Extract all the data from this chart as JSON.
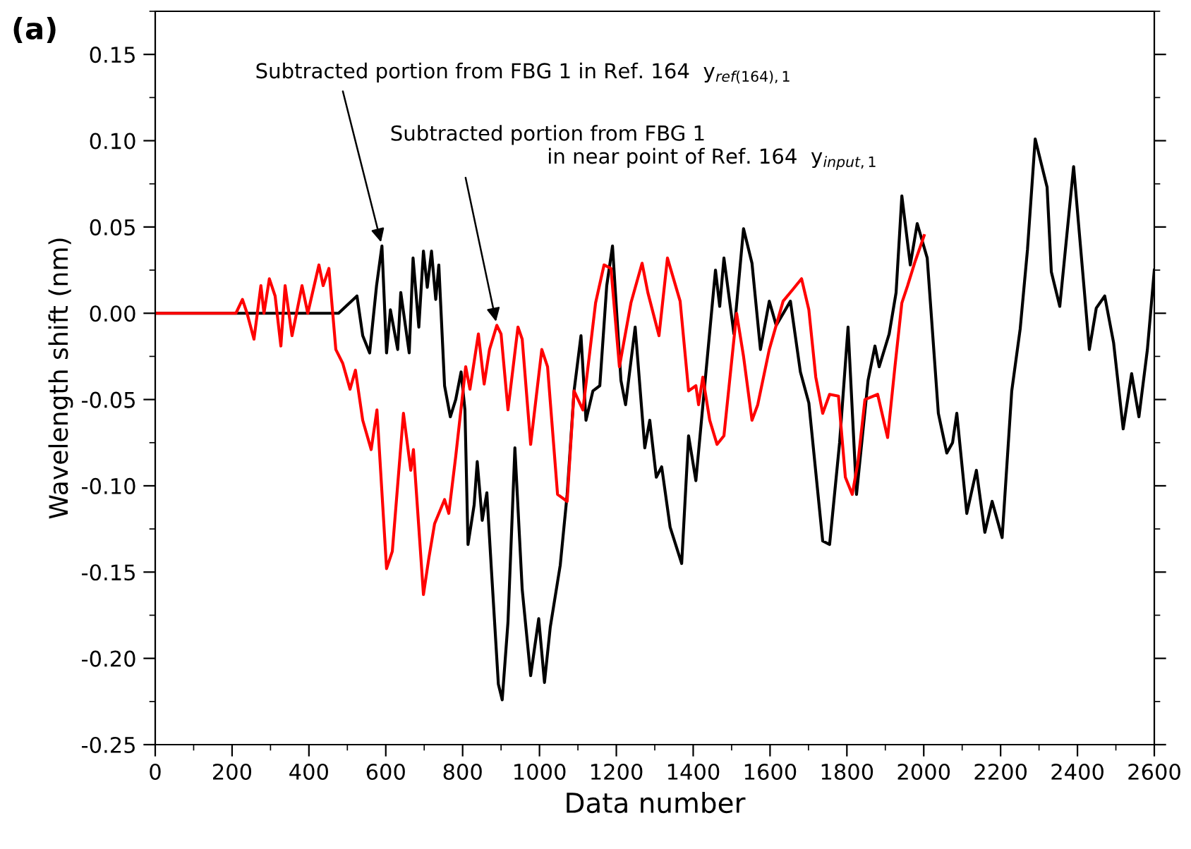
{
  "chart_data": {
    "type": "line",
    "xlabel": "Data number",
    "ylabel": "Wavelength shift (nm)",
    "xlim": [
      0,
      2600
    ],
    "ylim": [
      -0.25,
      0.175
    ],
    "xticks": [
      0,
      200,
      400,
      600,
      800,
      1000,
      1200,
      1400,
      1600,
      1800,
      2000,
      2200,
      2400,
      2600
    ],
    "yticks": [
      {
        "value": -0.25,
        "label": "-0.25"
      },
      {
        "value": -0.2,
        "label": "-0.20"
      },
      {
        "value": -0.15,
        "label": "-0.15"
      },
      {
        "value": -0.1,
        "label": "-0.10"
      },
      {
        "value": -0.05,
        "label": "-0.05"
      },
      {
        "value": 0,
        "label": "0.00"
      },
      {
        "value": 0.05,
        "label": "0.05"
      },
      {
        "value": 0.1,
        "label": "0.10"
      },
      {
        "value": 0.15,
        "label": "0.15"
      }
    ],
    "grid": false,
    "legend": false,
    "marker": "none",
    "line_style": "solid",
    "annotations": [
      "(a)",
      {
        "text": "Subtracted portion from FBG 1 in Ref. 164  y$_{ref(164),1}$",
        "x": 590,
        "y": 0.039
      },
      {
        "text": "Subtracted portion from FBG 1\n                        in near point of Ref. 164  y$_{input,1}$",
        "x": 889,
        "y": -0.007
      }
    ],
    "series": [
      {
        "color": "#000000",
        "x": [
          0,
          477,
          525,
          540,
          558,
          576,
          590,
          602,
          612,
          631,
          639,
          661,
          671,
          686,
          698,
          708,
          719,
          730,
          738,
          753,
          768,
          782,
          796,
          806,
          814,
          830,
          838,
          851,
          863,
          875,
          893,
          903,
          918,
          936,
          955,
          977,
          998,
          1013,
          1028,
          1054,
          1072,
          1090,
          1108,
          1121,
          1139,
          1157,
          1175,
          1190,
          1212,
          1224,
          1249,
          1274,
          1287,
          1304,
          1318,
          1340,
          1370,
          1388,
          1407,
          1432,
          1458,
          1469,
          1480,
          1506,
          1531,
          1553,
          1575,
          1598,
          1616,
          1653,
          1679,
          1701,
          1737,
          1755,
          1781,
          1803,
          1825,
          1855,
          1873,
          1884,
          1910,
          1928,
          1943,
          1965,
          1983,
          2009,
          2038,
          2060,
          2075,
          2086,
          2112,
          2137,
          2159,
          2178,
          2204,
          2229,
          2251,
          2270,
          2290,
          2321,
          2332,
          2354,
          2390,
          2431,
          2449,
          2471,
          2494,
          2519,
          2541,
          2560,
          2582,
          2600
        ],
        "values": [
          0,
          0,
          0.01,
          -0.013,
          -0.023,
          0.016,
          0.039,
          -0.023,
          0.002,
          -0.021,
          0.012,
          -0.023,
          0.032,
          -0.008,
          0.036,
          0.015,
          0.036,
          0.008,
          0.028,
          -0.042,
          -0.06,
          -0.05,
          -0.034,
          -0.056,
          -0.134,
          -0.111,
          -0.086,
          -0.12,
          -0.104,
          -0.149,
          -0.215,
          -0.224,
          -0.179,
          -0.078,
          -0.16,
          -0.21,
          -0.177,
          -0.214,
          -0.182,
          -0.146,
          -0.105,
          -0.045,
          -0.013,
          -0.062,
          -0.045,
          -0.042,
          0.016,
          0.039,
          -0.039,
          -0.053,
          -0.008,
          -0.078,
          -0.062,
          -0.095,
          -0.089,
          -0.124,
          -0.145,
          -0.071,
          -0.097,
          -0.037,
          0.025,
          0.004,
          0.032,
          -0.012,
          0.049,
          0.029,
          -0.021,
          0.007,
          -0.007,
          0.007,
          -0.034,
          -0.052,
          -0.132,
          -0.134,
          -0.075,
          -0.008,
          -0.105,
          -0.039,
          -0.019,
          -0.031,
          -0.012,
          0.012,
          0.068,
          0.028,
          0.052,
          0.032,
          -0.058,
          -0.081,
          -0.075,
          -0.058,
          -0.116,
          -0.091,
          -0.127,
          -0.109,
          -0.13,
          -0.045,
          -0.009,
          0.037,
          0.101,
          0.073,
          0.024,
          0.004,
          0.085,
          -0.021,
          0.003,
          0.01,
          -0.017,
          -0.067,
          -0.035,
          -0.06,
          -0.021,
          0.025
        ]
      },
      {
        "color": "#ff0000",
        "x": [
          0,
          210,
          227,
          239,
          257,
          275,
          283,
          297,
          312,
          327,
          338,
          356,
          382,
          397,
          426,
          437,
          452,
          470,
          488,
          507,
          521,
          540,
          562,
          577,
          602,
          617,
          646,
          665,
          672,
          698,
          712,
          727,
          753,
          764,
          782,
          808,
          819,
          841,
          856,
          870,
          889,
          900,
          918,
          944,
          955,
          977,
          1006,
          1021,
          1047,
          1072,
          1090,
          1113,
          1146,
          1168,
          1186,
          1208,
          1238,
          1267,
          1282,
          1311,
          1333,
          1366,
          1388,
          1407,
          1414,
          1425,
          1443,
          1462,
          1480,
          1513,
          1531,
          1553,
          1568,
          1598,
          1634,
          1660,
          1682,
          1701,
          1719,
          1737,
          1755,
          1778,
          1796,
          1814,
          1829,
          1847,
          1880,
          1906,
          1925,
          1943,
          1958,
          1976,
          2001
        ],
        "values": [
          0,
          0,
          0.008,
          0,
          -0.015,
          0.016,
          0,
          0.02,
          0.01,
          -0.019,
          0.016,
          -0.013,
          0.016,
          0,
          0.028,
          0.016,
          0.026,
          -0.021,
          -0.029,
          -0.044,
          -0.033,
          -0.062,
          -0.079,
          -0.056,
          -0.148,
          -0.138,
          -0.058,
          -0.091,
          -0.079,
          -0.163,
          -0.142,
          -0.122,
          -0.108,
          -0.116,
          -0.083,
          -0.031,
          -0.044,
          -0.012,
          -0.041,
          -0.021,
          -0.007,
          -0.012,
          -0.056,
          -0.008,
          -0.015,
          -0.076,
          -0.021,
          -0.031,
          -0.105,
          -0.109,
          -0.045,
          -0.056,
          0.006,
          0.028,
          0.026,
          -0.031,
          0.006,
          0.029,
          0.012,
          -0.013,
          0.032,
          0.007,
          -0.045,
          -0.042,
          -0.053,
          -0.037,
          -0.062,
          -0.076,
          -0.071,
          0,
          -0.025,
          -0.062,
          -0.053,
          -0.021,
          0.007,
          0.014,
          0.02,
          0.002,
          -0.037,
          -0.058,
          -0.047,
          -0.048,
          -0.095,
          -0.105,
          -0.086,
          -0.05,
          -0.047,
          -0.072,
          -0.031,
          0.006,
          0.016,
          0.029,
          0.045
        ]
      }
    ]
  }
}
